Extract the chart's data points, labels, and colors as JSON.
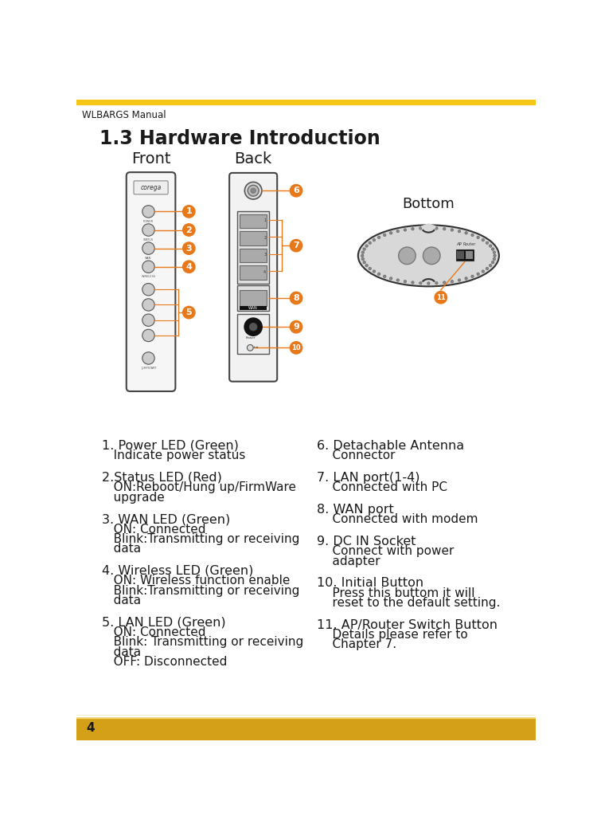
{
  "page_title": "WLBARGS Manual",
  "section_title": "1.3 Hardware Introduction",
  "top_bar_color": "#F5C518",
  "bottom_bar_color": "#D4A017",
  "bottom_line_color": "#F0D060",
  "page_number": "4",
  "bg_color": "#FFFFFF",
  "orange_color": "#E8791A",
  "dark_color": "#1A1A1A",
  "label_front": "Front",
  "label_back": "Back",
  "label_bottom": "Bottom",
  "descriptions_left": [
    [
      "1. Power LED (Green)",
      "   Indicate power status"
    ],
    [
      "2.Status LED (Red)",
      "   ON:Reboot/Hung up/FirmWare",
      "   upgrade"
    ],
    [
      "3. WAN LED (Green)",
      "   ON: Connected",
      "   Blink:Transmitting or receiving",
      "   data"
    ],
    [
      "4. Wireless LED (Green)",
      "   ON: Wireless function enable",
      "   Blink:Transmitting or receiving",
      "   data"
    ],
    [
      "5. LAN LED (Green)",
      "   ON: Connected",
      "   Blink: Transmitting or receiving",
      "   data",
      "   OFF: Disconnected"
    ]
  ],
  "descriptions_right": [
    [
      "6. Detachable Antenna",
      "    Connector"
    ],
    [
      "7. LAN port(1-4)",
      "    Connected with PC"
    ],
    [
      "8. WAN port",
      "    Connected with modem"
    ],
    [
      "9. DC IN Socket",
      "    Connect with power",
      "    adapter"
    ],
    [
      "10. Initial Button",
      "    Press this buttom it will",
      "    reset to the default setting."
    ],
    [
      "11. AP/Router Switch Button",
      "    Details please refer to",
      "    Chapter 7."
    ]
  ]
}
